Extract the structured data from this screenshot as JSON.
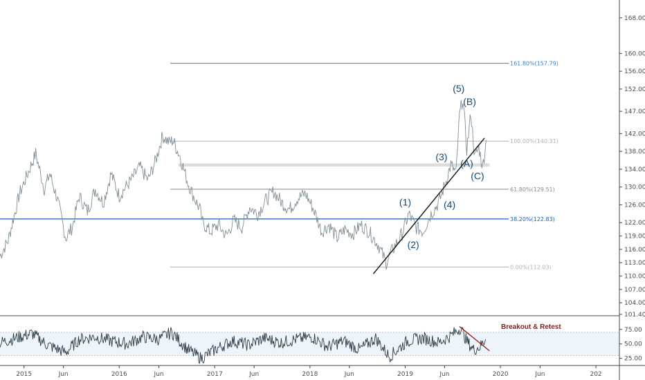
{
  "chart_data": {
    "type": "line",
    "price_panel": {
      "ylim": [
        101.4,
        172.0
      ],
      "y_ticks": [
        "168.00",
        "160.00",
        "156.00",
        "152.00",
        "147.00",
        "142.00",
        "138.00",
        "134.00",
        "130.00",
        "126.00",
        "122.00",
        "119.00",
        "116.00",
        "113.00",
        "110.00",
        "107.00",
        "104.00",
        "101.40"
      ],
      "y_tick_values": [
        168,
        160,
        156,
        152,
        147,
        142,
        138,
        134,
        130,
        126,
        122,
        119,
        116,
        113,
        110,
        107,
        104,
        101.4
      ],
      "series": [
        {
          "x": [
            "2014-10-01",
            "2014-11-01",
            "2014-12-15",
            "2015-01-15",
            "2015-02-15",
            "2015-03-20",
            "2015-04-10",
            "2015-05-10",
            "2015-06-10",
            "2015-07-05",
            "2015-08-01",
            "2015-09-01",
            "2015-10-01",
            "2015-11-01",
            "2015-12-01",
            "2016-01-01",
            "2016-02-15",
            "2016-03-20",
            "2016-04-20",
            "2016-05-20",
            "2016-06-15",
            "2016-07-10",
            "2016-07-25",
            "2016-08-20",
            "2016-09-20",
            "2016-10-15",
            "2016-11-05",
            "2016-11-15",
            "2016-12-15",
            "2017-01-15",
            "2017-02-15",
            "2017-03-15",
            "2017-04-15",
            "2017-05-15",
            "2017-06-15",
            "2017-07-15",
            "2017-08-15",
            "2017-09-15",
            "2017-10-15",
            "2017-11-15",
            "2017-12-15",
            "2018-01-15",
            "2018-02-15",
            "2018-03-15",
            "2018-04-15",
            "2018-05-15",
            "2018-06-15",
            "2018-07-15",
            "2018-08-15",
            "2018-09-20",
            "2018-10-20",
            "2018-11-10",
            "2018-12-20",
            "2019-01-15",
            "2019-02-10",
            "2019-03-10",
            "2019-04-10",
            "2019-05-10",
            "2019-06-10",
            "2019-06-25",
            "2019-07-15",
            "2019-07-28",
            "2019-08-10",
            "2019-08-25",
            "2019-09-10",
            "2019-09-25",
            "2019-10-10",
            "2019-10-25",
            "2019-11-08"
          ],
          "y": [
            114.5,
            118.0,
            128.5,
            133.0,
            137.5,
            129.5,
            133.0,
            127.0,
            118.5,
            121.0,
            128.0,
            124.5,
            129.5,
            126.5,
            133.0,
            128.0,
            131.5,
            134.5,
            131.5,
            136.0,
            141.5,
            140.0,
            140.5,
            137.0,
            131.0,
            127.5,
            125.0,
            122.0,
            120.0,
            121.5,
            119.0,
            122.5,
            121.0,
            125.5,
            124.0,
            127.0,
            129.0,
            126.5,
            125.0,
            127.5,
            128.5,
            125.0,
            120.0,
            121.5,
            118.5,
            120.5,
            119.5,
            121.5,
            120.0,
            117.0,
            113.0,
            115.5,
            119.5,
            124.0,
            121.0,
            120.0,
            124.0,
            126.5,
            132.0,
            135.0,
            133.0,
            146.0,
            150.0,
            138.5,
            146.5,
            136.5,
            139.0,
            134.5,
            140.5
          ]
        }
      ],
      "fibonacci": [
        {
          "label": "161.80%(157.79)",
          "value": 157.79,
          "color": "#2f80d0",
          "x_start": "2016-07-15"
        },
        {
          "label": "100.00%(140.31)",
          "value": 140.31,
          "color": "#b0b0b0",
          "x_start": "2016-07-15"
        },
        {
          "label": "61.80%(129.51)",
          "value": 129.51,
          "color": "#888888",
          "x_start": "2016-07-15"
        },
        {
          "label": "38.20%(122.83)",
          "value": 122.83,
          "color": "#1c5fb0",
          "x_start": "2014-10-01"
        },
        {
          "label": "0.00%(112.03)",
          "value": 112.03,
          "color": "#b0b0b0",
          "x_start": "2016-07-15"
        }
      ],
      "support_band": {
        "from": "2016-08-15",
        "to": "2019-11-20",
        "low": 134.6,
        "high": 135.3
      },
      "trendline": {
        "x": [
          "2018-09-01",
          "2019-11-01"
        ],
        "y": [
          110.5,
          141.0
        ]
      },
      "wave_labels": [
        {
          "text": "(1)",
          "x": "2019-01-01",
          "y": 125.8
        },
        {
          "text": "(2)",
          "x": "2019-02-01",
          "y": 116.3
        },
        {
          "text": "(3)",
          "x": "2019-05-20",
          "y": 136.0
        },
        {
          "text": "(4)",
          "x": "2019-06-20",
          "y": 125.3
        },
        {
          "text": "(5)",
          "x": "2019-07-25",
          "y": 151.4
        },
        {
          "text": "(A)",
          "x": "2019-08-25",
          "y": 134.5
        },
        {
          "text": "(B)",
          "x": "2019-09-05",
          "y": 148.4
        },
        {
          "text": "(C)",
          "x": "2019-10-05",
          "y": 131.7
        }
      ]
    },
    "rsi_panel": {
      "ylim": [
        15,
        95
      ],
      "y_ticks": [
        "75.00",
        "50.00",
        "25.00"
      ],
      "y_tick_values": [
        75,
        50,
        25
      ],
      "band": [
        30,
        70
      ],
      "series": [
        {
          "x": [
            "2014-10-01",
            "2014-12-01",
            "2015-02-01",
            "2015-04-01",
            "2015-06-10",
            "2015-08-01",
            "2015-10-01",
            "2015-12-01",
            "2016-02-01",
            "2016-04-01",
            "2016-06-01",
            "2016-07-20",
            "2016-09-20",
            "2016-11-10",
            "2017-01-10",
            "2017-03-10",
            "2017-05-10",
            "2017-07-10",
            "2017-09-10",
            "2017-11-10",
            "2018-01-10",
            "2018-03-10",
            "2018-05-10",
            "2018-07-10",
            "2018-09-10",
            "2018-11-01",
            "2019-01-10",
            "2019-03-10",
            "2019-05-10",
            "2019-06-25",
            "2019-08-01",
            "2019-08-25",
            "2019-09-20",
            "2019-10-15",
            "2019-11-05"
          ],
          "y": [
            52,
            60,
            68,
            48,
            35,
            58,
            62,
            55,
            50,
            62,
            58,
            70,
            40,
            25,
            42,
            55,
            48,
            60,
            52,
            58,
            62,
            45,
            55,
            40,
            60,
            28,
            55,
            60,
            52,
            64,
            78,
            55,
            40,
            45,
            58
          ]
        }
      ],
      "trendline": {
        "x": [
          "2019-07-28",
          "2019-11-20"
        ],
        "y": [
          80,
          38
        ]
      },
      "annotation": "Breakout & Retest"
    },
    "x_axis": {
      "ticks": [
        "2015",
        "Jun",
        "2016",
        "Jun",
        "2017",
        "Jun",
        "2018",
        "Jun",
        "2019",
        "Jun",
        "2020",
        "Jun",
        "202"
      ],
      "tick_dates": [
        "2015-01-01",
        "2015-06-01",
        "2016-01-01",
        "2016-06-01",
        "2017-01-01",
        "2017-06-01",
        "2018-01-01",
        "2018-06-01",
        "2019-01-01",
        "2019-06-01",
        "2020-01-01",
        "2020-06-01",
        "2021-01-01"
      ],
      "range": [
        "2014-10-01",
        "2021-04-01"
      ]
    },
    "grid": false
  }
}
